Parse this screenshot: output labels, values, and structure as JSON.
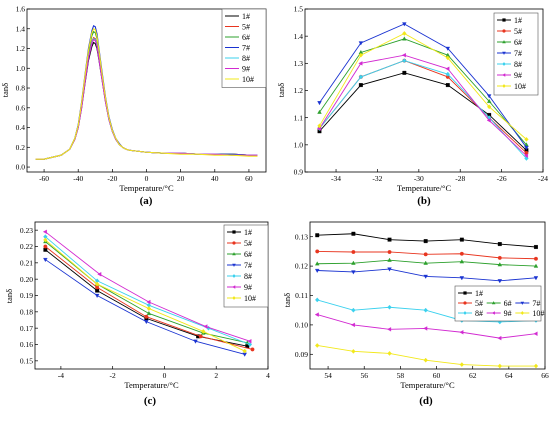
{
  "figure": {
    "panel_labels": [
      "(a)",
      "(b)",
      "(c)",
      "(d)"
    ],
    "series_colors": [
      "#000000",
      "#e8351f",
      "#2ca02c",
      "#1a33d1",
      "#3bd1ee",
      "#d22ad1",
      "#f2e81a",
      "#00bcd4"
    ]
  },
  "chart_data": [
    {
      "type": "line",
      "panel": "(a)",
      "xlabel": "Temperature/°C",
      "ylabel": "tanδ",
      "xlim": [
        -70,
        70
      ],
      "ylim": [
        -0.05,
        1.6
      ],
      "xticks": [
        -60,
        -40,
        -20,
        0,
        20,
        40,
        60
      ],
      "yticks": [
        0.0,
        0.2,
        0.4,
        0.6,
        0.8,
        1.0,
        1.2,
        1.4,
        1.6
      ],
      "ytick_labels": [
        "0.0",
        "0.2",
        "0.4",
        "0.6",
        "0.8",
        "1.0",
        "1.2",
        "1.4",
        "1.6"
      ],
      "legend": "top-right",
      "x": [
        -65,
        -60,
        -55,
        -50,
        -45,
        -42,
        -40,
        -38,
        -36,
        -34,
        -32,
        -31,
        -30,
        -29,
        -28,
        -26,
        -24,
        -22,
        -20,
        -18,
        -16,
        -14,
        -12,
        -10,
        -5,
        0,
        10,
        20,
        30,
        40,
        50,
        60,
        65
      ],
      "series": [
        {
          "name": "1#",
          "values": [
            0.08,
            0.08,
            0.1,
            0.12,
            0.18,
            0.28,
            0.4,
            0.6,
            0.85,
            1.08,
            1.22,
            1.26,
            1.25,
            1.2,
            1.1,
            0.88,
            0.66,
            0.48,
            0.36,
            0.28,
            0.23,
            0.2,
            0.18,
            0.17,
            0.16,
            0.15,
            0.14,
            0.14,
            0.13,
            0.13,
            0.13,
            0.12,
            0.12
          ]
        },
        {
          "name": "5#",
          "values": [
            0.08,
            0.08,
            0.1,
            0.12,
            0.18,
            0.28,
            0.41,
            0.62,
            0.88,
            1.12,
            1.27,
            1.31,
            1.3,
            1.24,
            1.13,
            0.9,
            0.67,
            0.49,
            0.37,
            0.28,
            0.23,
            0.2,
            0.18,
            0.17,
            0.16,
            0.15,
            0.14,
            0.14,
            0.13,
            0.13,
            0.13,
            0.12,
            0.12
          ]
        },
        {
          "name": "6#",
          "values": [
            0.08,
            0.08,
            0.1,
            0.12,
            0.18,
            0.29,
            0.42,
            0.64,
            0.91,
            1.16,
            1.33,
            1.37,
            1.36,
            1.3,
            1.18,
            0.93,
            0.69,
            0.5,
            0.37,
            0.29,
            0.23,
            0.2,
            0.18,
            0.17,
            0.16,
            0.15,
            0.14,
            0.14,
            0.13,
            0.13,
            0.13,
            0.12,
            0.12
          ]
        },
        {
          "name": "7#",
          "values": [
            0.08,
            0.08,
            0.1,
            0.12,
            0.18,
            0.29,
            0.43,
            0.66,
            0.94,
            1.2,
            1.38,
            1.43,
            1.42,
            1.35,
            1.22,
            0.96,
            0.71,
            0.51,
            0.38,
            0.29,
            0.24,
            0.2,
            0.18,
            0.17,
            0.16,
            0.15,
            0.14,
            0.14,
            0.13,
            0.13,
            0.13,
            0.12,
            0.12
          ]
        },
        {
          "name": "8#",
          "values": [
            0.08,
            0.08,
            0.1,
            0.12,
            0.18,
            0.28,
            0.41,
            0.61,
            0.87,
            1.11,
            1.26,
            1.3,
            1.29,
            1.23,
            1.12,
            0.89,
            0.67,
            0.48,
            0.36,
            0.28,
            0.23,
            0.2,
            0.18,
            0.17,
            0.16,
            0.15,
            0.14,
            0.14,
            0.13,
            0.13,
            0.12,
            0.12,
            0.12
          ]
        },
        {
          "name": "9#",
          "values": [
            0.08,
            0.08,
            0.1,
            0.12,
            0.18,
            0.28,
            0.4,
            0.6,
            0.86,
            1.1,
            1.25,
            1.29,
            1.28,
            1.22,
            1.11,
            0.88,
            0.66,
            0.48,
            0.36,
            0.28,
            0.23,
            0.2,
            0.18,
            0.17,
            0.16,
            0.15,
            0.14,
            0.14,
            0.13,
            0.13,
            0.12,
            0.12,
            0.12
          ]
        },
        {
          "name": "10#",
          "values": [
            0.08,
            0.08,
            0.1,
            0.12,
            0.18,
            0.29,
            0.42,
            0.65,
            0.93,
            1.18,
            1.36,
            1.4,
            1.39,
            1.32,
            1.2,
            0.94,
            0.7,
            0.5,
            0.37,
            0.29,
            0.23,
            0.2,
            0.18,
            0.17,
            0.16,
            0.15,
            0.14,
            0.13,
            0.13,
            0.12,
            0.12,
            0.11,
            0.11
          ]
        }
      ]
    },
    {
      "type": "line",
      "panel": "(b)",
      "xlabel": "Temperature/°C",
      "ylabel": "tanδ",
      "xlim": [
        -35.5,
        -24
      ],
      "ylim": [
        0.9,
        1.5
      ],
      "xticks": [
        -34,
        -32,
        -30,
        -28,
        -26,
        -24
      ],
      "yticks": [
        0.9,
        1.0,
        1.1,
        1.2,
        1.3,
        1.4,
        1.5
      ],
      "ytick_labels": [
        "0.9",
        "1.0",
        "1.1",
        "1.2",
        "1.3",
        "1.4",
        "1.5"
      ],
      "legend": "top-right",
      "x": [
        -34.8,
        -32.8,
        -30.7,
        -28.6,
        -26.6,
        -24.8
      ],
      "series": [
        {
          "name": "1#",
          "values": [
            1.05,
            1.22,
            1.265,
            1.22,
            1.11,
            0.98
          ]
        },
        {
          "name": "5#",
          "values": [
            1.06,
            1.25,
            1.31,
            1.25,
            1.1,
            0.97
          ]
        },
        {
          "name": "6#",
          "values": [
            1.12,
            1.34,
            1.39,
            1.33,
            1.16,
            1.0
          ]
        },
        {
          "name": "7#",
          "values": [
            1.155,
            1.375,
            1.445,
            1.355,
            1.18,
            0.99
          ]
        },
        {
          "name": "8#",
          "values": [
            1.06,
            1.25,
            1.31,
            1.26,
            1.1,
            0.95
          ]
        },
        {
          "name": "9#",
          "values": [
            1.06,
            1.3,
            1.33,
            1.28,
            1.09,
            0.96
          ]
        },
        {
          "name": "10#",
          "values": [
            1.07,
            1.33,
            1.41,
            1.32,
            1.14,
            1.02
          ]
        }
      ]
    },
    {
      "type": "line",
      "panel": "(c)",
      "xlabel": "Temperature/°C",
      "ylabel": "tanδ",
      "xlim": [
        -5,
        4
      ],
      "ylim": [
        0.145,
        0.235
      ],
      "xticks": [
        -4,
        -2,
        0,
        2,
        4
      ],
      "yticks": [
        0.15,
        0.16,
        0.17,
        0.18,
        0.19,
        0.2,
        0.21,
        0.22,
        0.23
      ],
      "ytick_labels": [
        "0.15",
        "0.16",
        "0.17",
        "0.18",
        "0.19",
        "0.20",
        "0.21",
        "0.22",
        "0.23"
      ],
      "legend": "top-right",
      "series": [
        {
          "name": "1#",
          "x": [
            -4.6,
            -2.6,
            -0.7,
            1.3,
            3.2
          ],
          "values": [
            0.218,
            0.193,
            0.176,
            0.165,
            0.159
          ]
        },
        {
          "name": "5#",
          "x": [
            -4.6,
            -2.6,
            -0.7,
            1.4,
            3.4
          ],
          "values": [
            0.22,
            0.195,
            0.177,
            0.165,
            0.157
          ]
        },
        {
          "name": "6#",
          "x": [
            -4.6,
            -2.6,
            -0.6,
            1.5,
            3.2
          ],
          "values": [
            0.223,
            0.197,
            0.179,
            0.167,
            0.161
          ]
        },
        {
          "name": "7#",
          "x": [
            -4.6,
            -2.6,
            -0.7,
            1.2,
            3.1
          ],
          "values": [
            0.212,
            0.19,
            0.174,
            0.162,
            0.154
          ]
        },
        {
          "name": "8#",
          "x": [
            -4.6,
            -2.6,
            -0.6,
            1.7,
            3.3
          ],
          "values": [
            0.226,
            0.199,
            0.184,
            0.17,
            0.16
          ]
        },
        {
          "name": "9#",
          "x": [
            -4.6,
            -2.5,
            -0.6,
            1.6,
            3.3
          ],
          "values": [
            0.229,
            0.203,
            0.186,
            0.171,
            0.162
          ]
        },
        {
          "name": "10#",
          "x": [
            -4.6,
            -2.6,
            -0.6,
            1.5,
            3.1
          ],
          "values": [
            0.224,
            0.197,
            0.182,
            0.168,
            0.156
          ]
        }
      ]
    },
    {
      "type": "line",
      "panel": "(d)",
      "xlabel": "Temperature/°C",
      "ylabel": "tanδ",
      "xlim": [
        53,
        66
      ],
      "ylim": [
        0.085,
        0.135
      ],
      "xticks": [
        54,
        56,
        58,
        60,
        62,
        64,
        66
      ],
      "yticks": [
        0.09,
        0.1,
        0.11,
        0.12,
        0.13
      ],
      "ytick_labels": [
        "0.09",
        "0.10",
        "0.11",
        "0.12",
        "0.13"
      ],
      "legend": "center-right",
      "x": [
        53.4,
        55.4,
        57.4,
        59.4,
        61.4,
        63.5,
        65.5
      ],
      "series": [
        {
          "name": "1#",
          "values": [
            0.1305,
            0.131,
            0.129,
            0.1285,
            0.129,
            0.1275,
            0.1265
          ]
        },
        {
          "name": "5#",
          "values": [
            0.125,
            0.1248,
            0.1248,
            0.124,
            0.1242,
            0.1228,
            0.1225
          ]
        },
        {
          "name": "6#",
          "values": [
            0.1208,
            0.121,
            0.122,
            0.121,
            0.1215,
            0.1205,
            0.12
          ]
        },
        {
          "name": "7#",
          "values": [
            0.1185,
            0.118,
            0.119,
            0.1165,
            0.116,
            0.115,
            0.116
          ]
        },
        {
          "name": "8#",
          "values": [
            0.1085,
            0.105,
            0.106,
            0.105,
            0.1015,
            0.101,
            0.1015
          ]
        },
        {
          "name": "9#",
          "values": [
            0.1035,
            0.1,
            0.0985,
            0.0988,
            0.0975,
            0.0955,
            0.097
          ]
        },
        {
          "name": "10#",
          "values": [
            0.093,
            0.091,
            0.0903,
            0.088,
            0.0865,
            0.086,
            0.086
          ]
        }
      ]
    }
  ]
}
